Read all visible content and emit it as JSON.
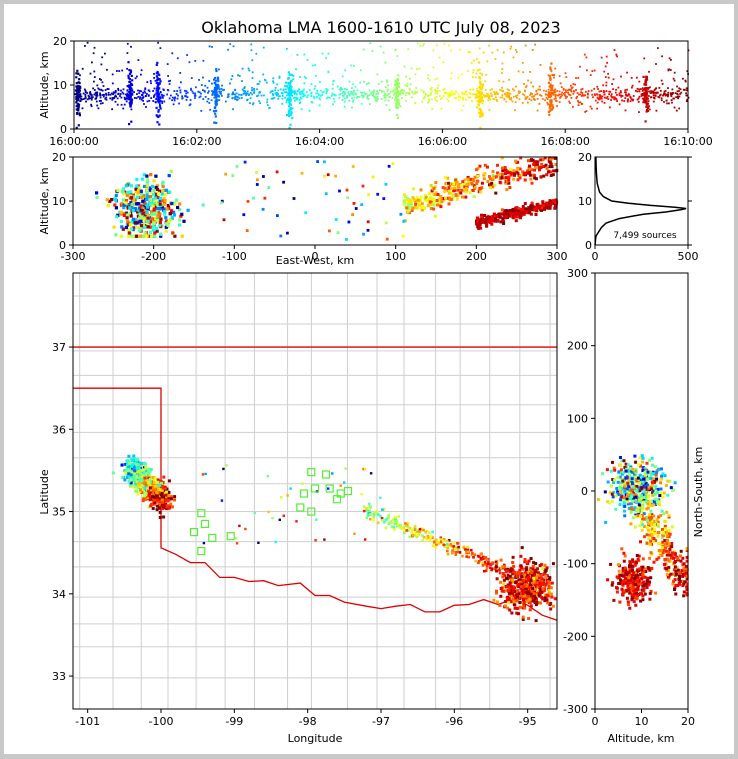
{
  "chart_data": [
    {
      "id": "time-height",
      "type": "scatter",
      "title": "Oklahoma LMA 1600-1610 UTC July 08, 2023",
      "ylabel": "Altitude, km",
      "xlabel": "",
      "xlim": [
        "16:00:00",
        "16:10:00"
      ],
      "ylim": [
        0,
        20
      ],
      "xticks": [
        "16:00:00",
        "16:02:00",
        "16:04:00",
        "16:06:00",
        "16:08:00",
        "16:10:00"
      ],
      "yticks": [
        0,
        10,
        20
      ],
      "color_scale": "time, blue to red",
      "main_layer_km": 8,
      "bursts_min": [
        0.05,
        0.9,
        1.35,
        2.3,
        3.5,
        5.25,
        6.6,
        7.75,
        9.3
      ]
    },
    {
      "id": "ew-altitude",
      "type": "scatter",
      "xlabel": "East-West, km",
      "ylabel": "Altitude, km",
      "xlim": [
        -300,
        300
      ],
      "ylim": [
        0,
        20
      ],
      "xticks": [
        -300,
        -200,
        -100,
        0,
        100,
        200,
        300
      ],
      "yticks": [
        0,
        10,
        20
      ],
      "clusters": [
        {
          "x": -210,
          "y": 8,
          "time_frac": 0.55
        },
        {
          "x": 220,
          "y": 14,
          "time_frac": 0.78
        },
        {
          "x": 270,
          "y": 9,
          "time_frac": 0.95
        }
      ]
    },
    {
      "id": "altitude-histogram",
      "type": "line",
      "annotation": "7,499 sources",
      "xlim": [
        0,
        500
      ],
      "ylim": [
        0,
        20
      ],
      "xticks": [
        0,
        500
      ],
      "yticks": [
        0,
        10,
        20
      ],
      "profile": [
        [
          0,
          0
        ],
        [
          2,
          5
        ],
        [
          4,
          35
        ],
        [
          5,
          60
        ],
        [
          6,
          130
        ],
        [
          7,
          260
        ],
        [
          7.5,
          380
        ],
        [
          8,
          460
        ],
        [
          8.3,
          490
        ],
        [
          8.6,
          430
        ],
        [
          9,
          300
        ],
        [
          9.5,
          180
        ],
        [
          10,
          90
        ],
        [
          11,
          45
        ],
        [
          12,
          25
        ],
        [
          14,
          12
        ],
        [
          16,
          8
        ],
        [
          18,
          6
        ],
        [
          20,
          5
        ]
      ]
    },
    {
      "id": "plan-view",
      "type": "scatter",
      "xlabel": "Longitude",
      "ylabel": "Latitude",
      "xlim": [
        -101.2,
        -94.6
      ],
      "ylim": [
        32.6,
        37.9
      ],
      "xticks": [
        -101,
        -100,
        -99,
        -98,
        -97,
        -96,
        -95
      ],
      "yticks": [
        33,
        34,
        35,
        36,
        37
      ],
      "stations_lon_lat": [
        [
          -97.95,
          35.48
        ],
        [
          -97.75,
          35.45
        ],
        [
          -97.45,
          35.25
        ],
        [
          -97.6,
          35.15
        ],
        [
          -98.05,
          35.22
        ],
        [
          -97.9,
          35.28
        ],
        [
          -97.95,
          35.0
        ],
        [
          -98.1,
          35.05
        ],
        [
          -99.45,
          34.98
        ],
        [
          -99.4,
          34.85
        ],
        [
          -99.55,
          34.75
        ],
        [
          -99.3,
          34.68
        ],
        [
          -99.45,
          34.52
        ],
        [
          -99.05,
          34.7
        ],
        [
          -97.7,
          35.28
        ],
        [
          -97.55,
          35.22
        ]
      ]
    },
    {
      "id": "ns-altitude",
      "type": "scatter",
      "xlabel": "Altitude, km",
      "ylabel": "North-South, km",
      "xlim": [
        0,
        20
      ],
      "ylim": [
        -300,
        300
      ],
      "xticks": [
        0,
        10,
        20
      ],
      "yticks": [
        -300,
        -200,
        -100,
        0,
        100,
        200,
        300
      ]
    }
  ]
}
